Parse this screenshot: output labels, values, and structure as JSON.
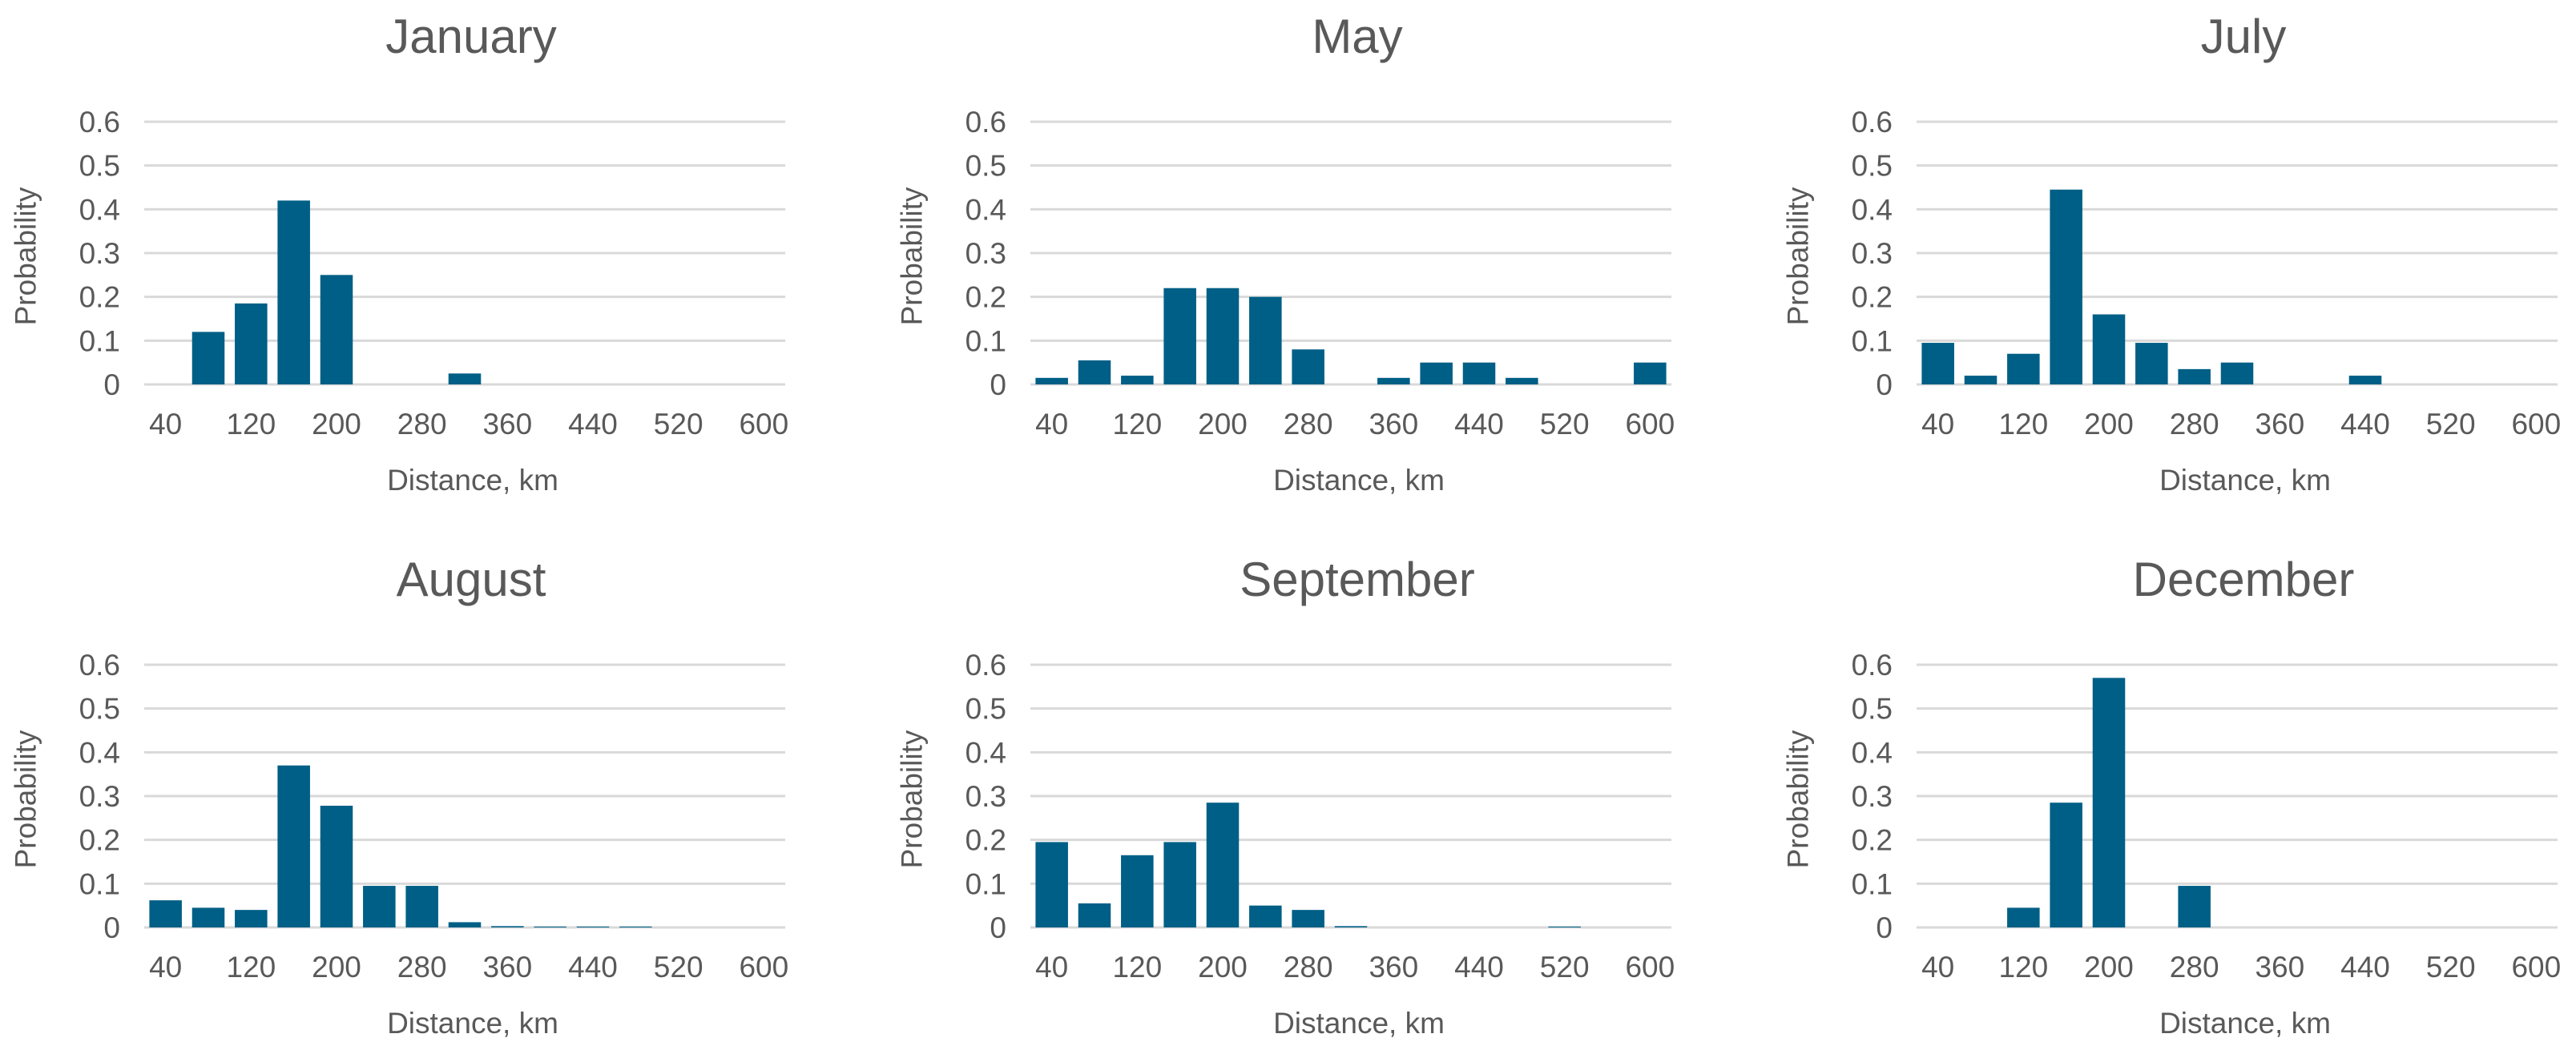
{
  "style": {
    "bar_color": "#005F86",
    "grid_color": "#D9D9D9",
    "text_color": "#595959"
  },
  "chart_data": [
    {
      "type": "bar",
      "title": "January",
      "xlabel": "Distance, km",
      "ylabel": "Probability",
      "ylim": [
        0,
        0.6
      ],
      "yticks": [
        "0",
        "0.1",
        "0.2",
        "0.3",
        "0.4",
        "0.5",
        "0.6"
      ],
      "xtick_labels": [
        "40",
        "120",
        "200",
        "280",
        "360",
        "440",
        "520",
        "600"
      ],
      "grid": true,
      "categories": [
        "40",
        "80",
        "120",
        "160",
        "200",
        "240",
        "280",
        "320",
        "360",
        "400",
        "440",
        "480",
        "520",
        "560",
        "600"
      ],
      "values": [
        0,
        0.12,
        0.185,
        0.42,
        0.25,
        0,
        0,
        0.025,
        0,
        0,
        0,
        0,
        0,
        0,
        0
      ]
    },
    {
      "type": "bar",
      "title": "May",
      "xlabel": "Distance, km",
      "ylabel": "Probability",
      "ylim": [
        0,
        0.6
      ],
      "yticks": [
        "0",
        "0.1",
        "0.2",
        "0.3",
        "0.4",
        "0.5",
        "0.6"
      ],
      "xtick_labels": [
        "40",
        "120",
        "200",
        "280",
        "360",
        "440",
        "520",
        "600"
      ],
      "grid": true,
      "categories": [
        "40",
        "80",
        "120",
        "160",
        "200",
        "240",
        "280",
        "320",
        "360",
        "400",
        "440",
        "480",
        "520",
        "560",
        "600"
      ],
      "values": [
        0.015,
        0.055,
        0.02,
        0.22,
        0.22,
        0.2,
        0.08,
        0,
        0.015,
        0.05,
        0.05,
        0.015,
        0,
        0,
        0.05
      ]
    },
    {
      "type": "bar",
      "title": "July",
      "xlabel": "Distance, km",
      "ylabel": "Probability",
      "ylim": [
        0,
        0.6
      ],
      "yticks": [
        "0",
        "0.1",
        "0.2",
        "0.3",
        "0.4",
        "0.5",
        "0.6"
      ],
      "xtick_labels": [
        "40",
        "120",
        "200",
        "280",
        "360",
        "440",
        "520",
        "600"
      ],
      "grid": true,
      "categories": [
        "40",
        "80",
        "120",
        "160",
        "200",
        "240",
        "280",
        "320",
        "360",
        "400",
        "440",
        "480",
        "520",
        "560",
        "600"
      ],
      "values": [
        0.095,
        0.02,
        0.07,
        0.445,
        0.16,
        0.095,
        0.035,
        0.05,
        0,
        0,
        0.02,
        0,
        0,
        0,
        0
      ]
    },
    {
      "type": "bar",
      "title": "August",
      "xlabel": "Distance, km",
      "ylabel": "Probability",
      "ylim": [
        0,
        0.6
      ],
      "yticks": [
        "0",
        "0.1",
        "0.2",
        "0.3",
        "0.4",
        "0.5",
        "0.6"
      ],
      "xtick_labels": [
        "40",
        "120",
        "200",
        "280",
        "360",
        "440",
        "520",
        "600"
      ],
      "grid": true,
      "categories": [
        "40",
        "80",
        "120",
        "160",
        "200",
        "240",
        "280",
        "320",
        "360",
        "400",
        "440",
        "480",
        "520",
        "560",
        "600"
      ],
      "values": [
        0.062,
        0.045,
        0.04,
        0.37,
        0.278,
        0.095,
        0.095,
        0.012,
        0.003,
        0.002,
        0.002,
        0.002,
        0,
        0,
        0
      ]
    },
    {
      "type": "bar",
      "title": "September",
      "xlabel": "Distance, km",
      "ylabel": "Probability",
      "ylim": [
        0,
        0.6
      ],
      "yticks": [
        "0",
        "0.1",
        "0.2",
        "0.3",
        "0.4",
        "0.5",
        "0.6"
      ],
      "xtick_labels": [
        "40",
        "120",
        "200",
        "280",
        "360",
        "440",
        "520",
        "600"
      ],
      "grid": true,
      "categories": [
        "40",
        "80",
        "120",
        "160",
        "200",
        "240",
        "280",
        "320",
        "360",
        "400",
        "440",
        "480",
        "520",
        "560",
        "600"
      ],
      "values": [
        0.195,
        0.055,
        0.165,
        0.195,
        0.285,
        0.05,
        0.04,
        0.003,
        0,
        0,
        0,
        0,
        0.002,
        0,
        0
      ]
    },
    {
      "type": "bar",
      "title": "December",
      "xlabel": "Distance, km",
      "ylabel": "Probability",
      "ylim": [
        0,
        0.6
      ],
      "yticks": [
        "0",
        "0.1",
        "0.2",
        "0.3",
        "0.4",
        "0.5",
        "0.6"
      ],
      "xtick_labels": [
        "40",
        "120",
        "200",
        "280",
        "360",
        "440",
        "520",
        "600"
      ],
      "grid": true,
      "categories": [
        "40",
        "80",
        "120",
        "160",
        "200",
        "240",
        "280",
        "320",
        "360",
        "400",
        "440",
        "480",
        "520",
        "560",
        "600"
      ],
      "values": [
        0,
        0,
        0.045,
        0.285,
        0.57,
        0,
        0.095,
        0,
        0,
        0,
        0,
        0,
        0,
        0,
        0
      ]
    }
  ]
}
